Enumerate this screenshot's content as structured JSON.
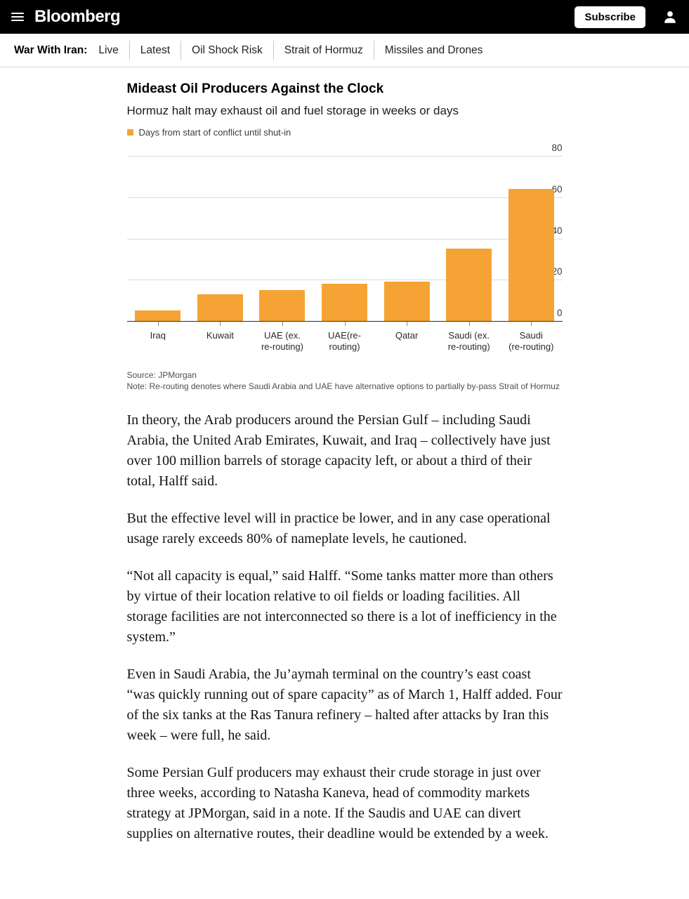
{
  "theme": {
    "header_bg": "#000000",
    "accent_orange": "#F5A335",
    "nav_divider": "#c9c9c9"
  },
  "header": {
    "brand": "Bloomberg",
    "subscribe_label": "Subscribe",
    "icons": {
      "menu": "hamburger-icon",
      "profile": "person-icon"
    }
  },
  "topic_nav": {
    "label": "War With Iran:",
    "items": [
      "Live",
      "Latest",
      "Oil Shock Risk",
      "Strait of Hormuz",
      "Missiles and Drones"
    ]
  },
  "chart": {
    "title": "Mideast Oil Producers Against the Clock",
    "subtitle": "Hormuz halt may exhaust oil and fuel storage in weeks or days",
    "legend_label": "Days from start of conflict until shut-in",
    "source": "Source: JPMorgan",
    "note": "Note: Re-routing denotes where Saudi Arabia and UAE have alternative options to partially by-pass Strait of Hormuz"
  },
  "chart_data": {
    "type": "bar",
    "title": "Mideast Oil Producers Against the Clock",
    "subtitle": "Hormuz halt may exhaust oil and fuel storage in weeks or days",
    "series_label": "Days from start of conflict until shut-in",
    "categories": [
      "Iraq",
      "Kuwait",
      "UAE (ex. re-routing)",
      "UAE(re-routing)",
      "Qatar",
      "Saudi (ex. re-routing)",
      "Saudi (re-routing)"
    ],
    "category_label_lines": [
      [
        "Iraq"
      ],
      [
        "Kuwait"
      ],
      [
        "UAE (ex.",
        "re-routing)"
      ],
      [
        "UAE(re-routing)"
      ],
      [
        "Qatar"
      ],
      [
        "Saudi (ex.",
        "re-routing)"
      ],
      [
        "Saudi",
        "(re-routing)"
      ]
    ],
    "values": [
      5,
      13,
      15,
      18,
      19,
      35,
      64
    ],
    "ylim": [
      0,
      80
    ],
    "yticks": [
      0,
      20,
      40,
      60,
      80
    ],
    "y_axis_side": "right",
    "grid": true,
    "legend_position": "top-left",
    "bar_color": "#F5A335"
  },
  "article": {
    "paragraphs": [
      "In theory, the Arab producers around the Persian Gulf – including Saudi Arabia, the United Arab Emirates, Kuwait, and Iraq – collectively have just over 100 million barrels of storage capacity left, or about a third of their total, Halff said.",
      "But the effective level will in practice be lower, and in any case operational usage rarely exceeds 80% of nameplate levels, he cautioned.",
      "“Not all capacity is equal,” said Halff. “Some tanks matter more than others by virtue of their location relative to oil fields or loading facilities. All storage facilities are not interconnected so there is a lot of inefficiency in the system.”",
      "Even in Saudi Arabia, the Ju’aymah terminal on the country’s east coast “was quickly running out of spare capacity” as of March 1, Halff added. Four of the six tanks at the Ras Tanura refinery – halted after attacks by Iran this week – were full, he said.",
      "Some Persian Gulf producers may exhaust their crude storage in just over three weeks, according to Natasha Kaneva, head of commodity markets strategy at JPMorgan, said in a note. If the Saudis and UAE can divert supplies on alternative routes, their deadline would be extended by a week."
    ]
  }
}
